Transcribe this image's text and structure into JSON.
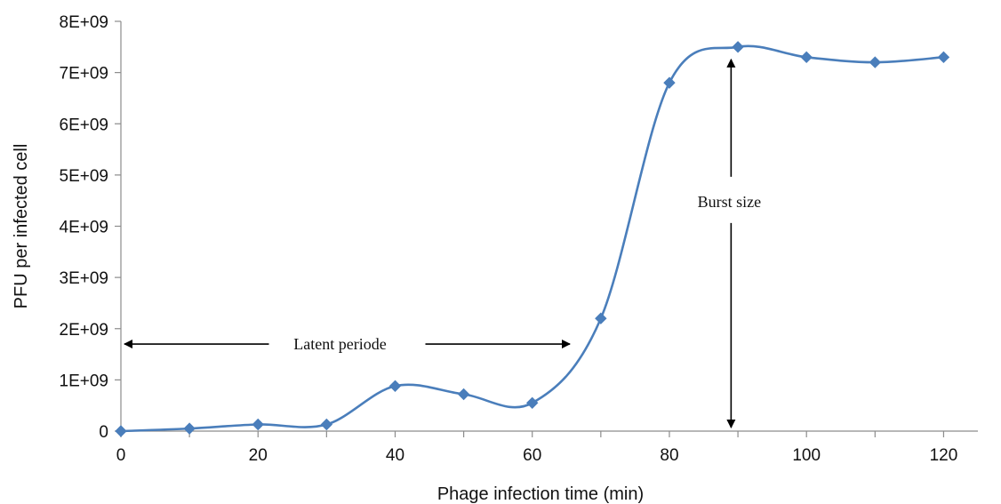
{
  "chart_data": {
    "type": "line",
    "title": "",
    "xlabel": "Phage infection time (min)",
    "ylabel": "PFU per infected cell",
    "x": [
      0,
      10,
      20,
      30,
      40,
      50,
      60,
      70,
      80,
      90,
      100,
      110,
      120
    ],
    "series": [
      {
        "values": [
          0,
          50000000,
          130000000,
          130000000,
          880000000,
          720000000,
          550000000,
          2200000000,
          6800000000,
          7500000000,
          7300000000,
          7200000000,
          7300000000
        ],
        "color": "#4a7ebb",
        "marker": "diamond",
        "smooth": true
      }
    ],
    "xlim": [
      0,
      125
    ],
    "ylim": [
      0,
      8000000000
    ],
    "xticks": [
      0,
      20,
      40,
      60,
      80,
      100,
      120
    ],
    "xtick_labels": [
      "0",
      "20",
      "40",
      "60",
      "80",
      "100",
      "120"
    ],
    "yticks": [
      0,
      1000000000,
      2000000000,
      3000000000,
      4000000000,
      5000000000,
      6000000000,
      7000000000,
      8000000000
    ],
    "ytick_labels": [
      "0",
      "1E+09",
      "2E+09",
      "3E+09",
      "4E+09",
      "5E+09",
      "6E+09",
      "7E+09",
      "8E+09"
    ],
    "grid": false,
    "legend": "none",
    "annotations": [
      {
        "text": "Latent periode",
        "type": "double-arrow-horizontal",
        "x_start": 0,
        "x_end": 66,
        "y": 1700000000
      },
      {
        "text": "Burst size",
        "type": "double-arrow-vertical",
        "x": 89,
        "y_start": 0,
        "y_end": 7500000000
      }
    ]
  }
}
